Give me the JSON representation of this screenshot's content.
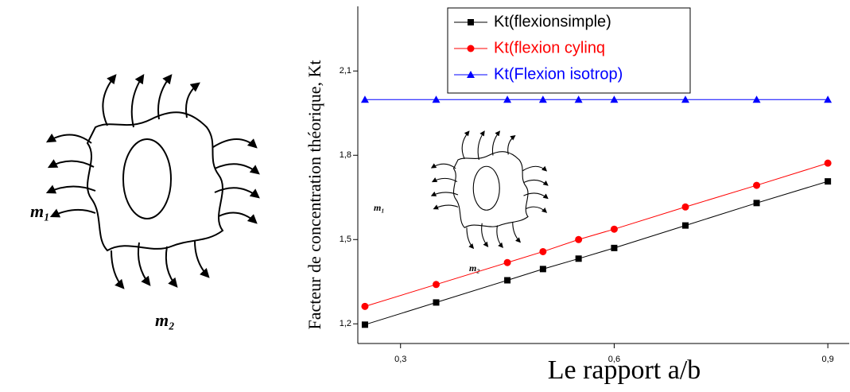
{
  "chart_data": {
    "type": "line",
    "xlabel": "Le rapport a/b",
    "ylabel": "Facteur de concentration théorique, Kt",
    "x": [
      0.25,
      0.35,
      0.45,
      0.5,
      0.55,
      0.6,
      0.7,
      0.8,
      0.9
    ],
    "series": [
      {
        "name": "Kt(flexionsimple)",
        "color": "#000000",
        "marker": "square",
        "values": [
          1.197,
          1.276,
          1.355,
          1.395,
          1.432,
          1.47,
          1.55,
          1.63,
          1.707
        ]
      },
      {
        "name": "Kt(flexion cylinq",
        "color": "#ff0000",
        "marker": "circle",
        "values": [
          1.262,
          1.34,
          1.418,
          1.457,
          1.5,
          1.537,
          1.616,
          1.693,
          1.772
        ]
      },
      {
        "name": "Kt(Flexion isotrop)",
        "color": "#0000ff",
        "marker": "triangle",
        "values": [
          1.998,
          1.998,
          1.998,
          1.998,
          1.998,
          1.998,
          1.998,
          1.998,
          1.998
        ]
      }
    ],
    "xlim": [
      0.24,
      0.93
    ],
    "ylim": [
      1.13,
      2.33
    ],
    "xticks": [
      {
        "value": 0.3,
        "label": "0,3"
      },
      {
        "value": 0.6,
        "label": "0,6"
      },
      {
        "value": 0.9,
        "label": "0,9"
      }
    ],
    "yticks": [
      {
        "value": 1.2,
        "label": "1,2"
      },
      {
        "value": 1.5,
        "label": "1,5"
      },
      {
        "value": 1.8,
        "label": "1,8"
      },
      {
        "value": 2.1,
        "label": "2,1"
      }
    ],
    "legend": "top"
  },
  "figure": {
    "labels": [
      "m₁",
      "m₂"
    ],
    "inset_labels": [
      "m₁",
      "m₂"
    ]
  }
}
